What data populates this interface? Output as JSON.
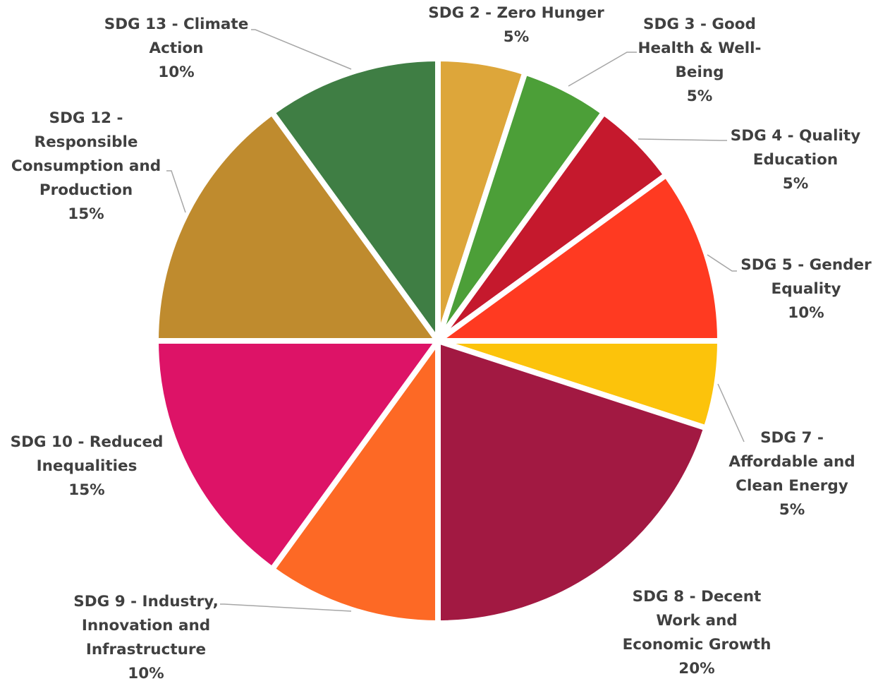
{
  "chart_data": {
    "type": "pie",
    "title": "",
    "start_angle_deg": 0,
    "direction": "clockwise",
    "slices": [
      {
        "label": "SDG 2 - Zero Hunger",
        "lines": [
          "SDG 2 - Zero Hunger"
        ],
        "value": 5,
        "value_label": "5%",
        "color": "#DDA63A"
      },
      {
        "label": "SDG 3 - Good Health & Well-Being",
        "lines": [
          "SDG 3 - Good",
          "Health & Well-",
          "Being"
        ],
        "value": 5,
        "value_label": "5%",
        "color": "#4C9F38"
      },
      {
        "label": "SDG 4 - Quality Education",
        "lines": [
          "SDG 4 - Quality",
          "Education"
        ],
        "value": 5,
        "value_label": "5%",
        "color": "#C5192D"
      },
      {
        "label": "SDG 5 - Gender Equality",
        "lines": [
          "SDG 5 - Gender",
          "Equality"
        ],
        "value": 10,
        "value_label": "10%",
        "color": "#FF3A21"
      },
      {
        "label": "SDG 7 - Affordable and Clean Energy",
        "lines": [
          "SDG 7 -",
          "Affordable and",
          "Clean Energy"
        ],
        "value": 5,
        "value_label": "5%",
        "color": "#FCC30B"
      },
      {
        "label": "SDG 8 - Decent Work and Economic Growth",
        "lines": [
          "SDG 8 - Decent",
          "Work and",
          "Economic Growth"
        ],
        "value": 20,
        "value_label": "20%",
        "color": "#A21942"
      },
      {
        "label": "SDG 9 - Industry, Innovation and Infrastructure",
        "lines": [
          "SDG 9 - Industry,",
          "Innovation and",
          "Infrastructure"
        ],
        "value": 10,
        "value_label": "10%",
        "color": "#FD6925"
      },
      {
        "label": "SDG 10 - Reduced Inequalities",
        "lines": [
          "SDG 10 - Reduced",
          "Inequalities"
        ],
        "value": 15,
        "value_label": "15%",
        "color": "#DD1367"
      },
      {
        "label": "SDG 12 - Responsible Consumption and Production",
        "lines": [
          "SDG 12 -",
          "Responsible",
          "Consumption and",
          "Production"
        ],
        "value": 15,
        "value_label": "15%",
        "color": "#BF8B2E"
      },
      {
        "label": "SDG 13 - Climate Action",
        "lines": [
          "SDG 13 - Climate",
          "Action"
        ],
        "value": 10,
        "value_label": "10%",
        "color": "#3F7E44"
      }
    ]
  }
}
